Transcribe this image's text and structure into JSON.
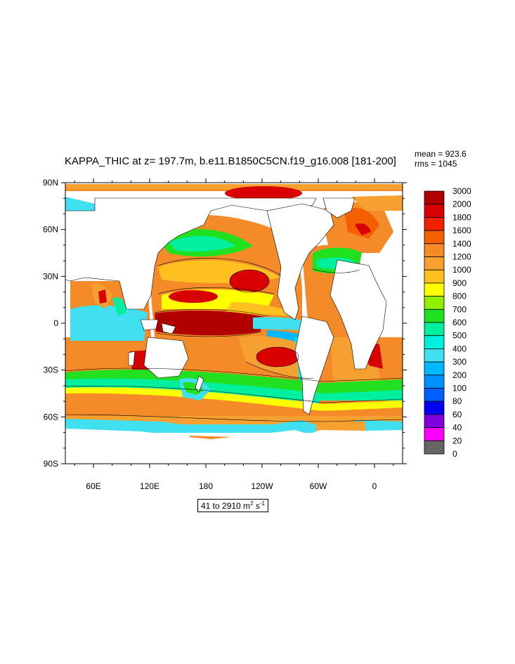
{
  "title": "KAPPA_THIC at z= 197.7m, b.e11.B1850C5CN.f19_g16.008 [181-200]",
  "stats": {
    "mean": "mean = 923.6",
    "rms": "rms = 1045"
  },
  "range": {
    "prefix": "41 to 2910 m",
    "exp1": "2",
    "mid": " s",
    "exp2": "-1"
  },
  "map": {
    "type": "contour-fill map",
    "lon_range": "30E to 30E (global, centred on 180)",
    "lat_range": [
      -90,
      90
    ],
    "y_ticks": [
      "90N",
      "60N",
      "30N",
      "0",
      "30S",
      "60S",
      "90S"
    ],
    "x_ticks": [
      "60E",
      "120E",
      "180",
      "120W",
      "60W",
      "0"
    ]
  },
  "legend": {
    "labels": [
      "3000",
      "2000",
      "1800",
      "1600",
      "1400",
      "1200",
      "1000",
      "900",
      "800",
      "700",
      "600",
      "500",
      "400",
      "300",
      "200",
      "100",
      "80",
      "60",
      "40",
      "20",
      "0"
    ],
    "colors": [
      "#b00000",
      "#d80000",
      "#f02000",
      "#f46000",
      "#f58a28",
      "#f5a030",
      "#ffc020",
      "#ffff00",
      "#90f000",
      "#20e020",
      "#00f0a0",
      "#00f0e0",
      "#40e0f0",
      "#00b8ff",
      "#0090ff",
      "#0060ff",
      "#0000f0",
      "#8000e0",
      "#ff00ff",
      "#c8c8c8",
      "#707070"
    ]
  }
}
